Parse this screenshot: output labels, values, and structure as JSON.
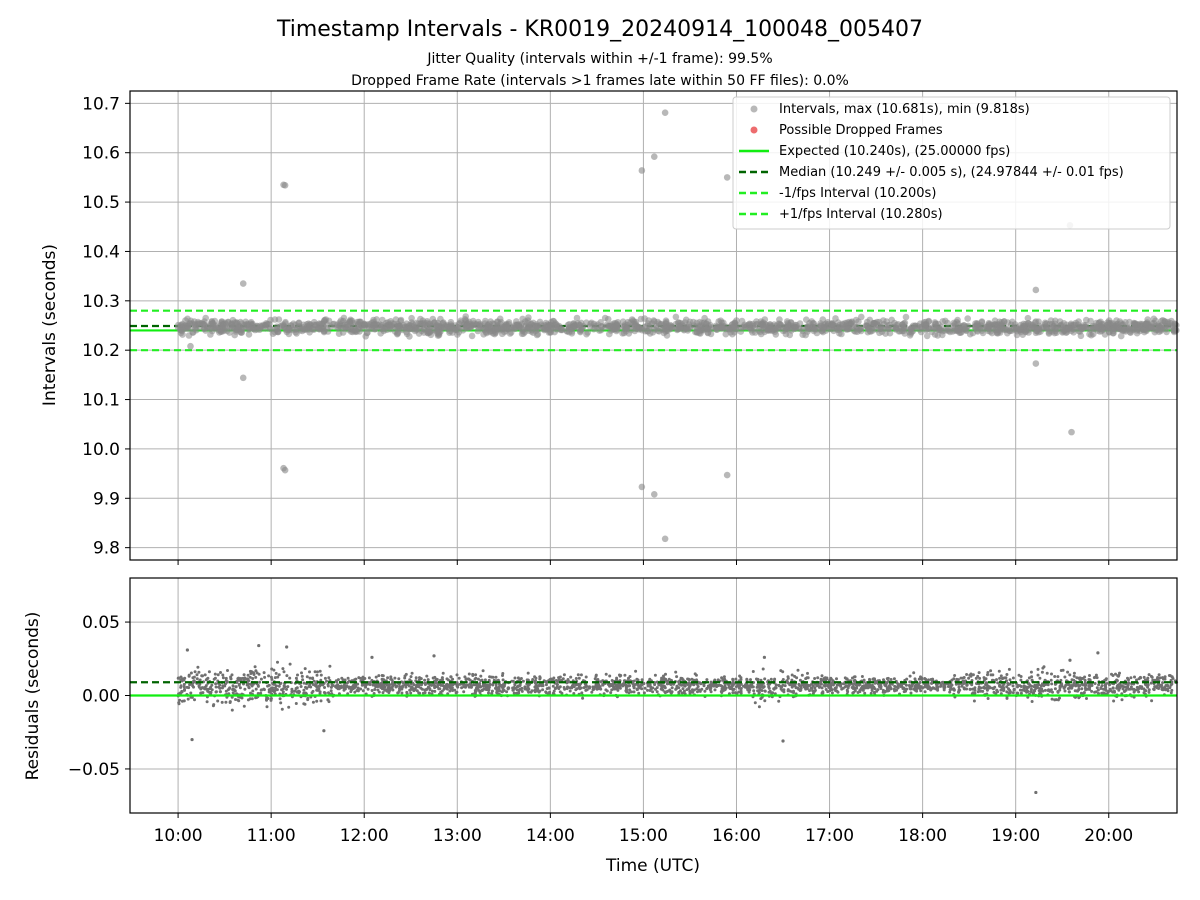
{
  "title": "Timestamp Intervals - KR0019_20240914_100048_005407",
  "subtitle_1": "Jitter Quality (intervals within +/-1 frame): 99.5%",
  "subtitle_2": "Dropped Frame Rate (intervals >1 frames late within 50 FF files): 0.0%",
  "colors": {
    "intervals": "#888888",
    "dropped": "#e8474a",
    "expected": "#11ee11",
    "median": "#006400",
    "interval_bounds": "#22ee22",
    "residuals": "#707070",
    "grid": "#b0b0b0"
  },
  "chart_data": [
    {
      "type": "scatter",
      "panel": "intervals",
      "ylabel": "Intervals (seconds)",
      "xlabel": "",
      "ylim": [
        9.775,
        10.725
      ],
      "xlim": [
        "09:29",
        "20:44"
      ],
      "yticks": [
        "9.8",
        "9.9",
        "10.0",
        "10.1",
        "10.2",
        "10.3",
        "10.4",
        "10.5",
        "10.6",
        "10.7"
      ],
      "ytick_values": [
        9.8,
        9.9,
        10.0,
        10.1,
        10.2,
        10.3,
        10.4,
        10.5,
        10.6,
        10.7
      ],
      "grid": true,
      "legend_position": "top-right",
      "legend": [
        "Intervals, max (10.681s), min (9.818s)",
        "Possible Dropped Frames",
        "Expected (10.240s), (25.00000 fps)",
        "Median (10.249 +/- 0.005 s), (24.97844 +/- 0.01 fps)",
        "-1/fps Interval (10.200s)",
        "+1/fps Interval (10.280s)"
      ],
      "reference_lines": {
        "expected": 10.24,
        "median": 10.249,
        "minus_1_fps": 10.2,
        "plus_1_fps": 10.28
      },
      "core_band": {
        "center": 10.247,
        "spread": 0.012,
        "time_start": "10:00",
        "time_end": "20:44"
      },
      "outliers": [
        {
          "x": "10:08",
          "y": 10.208
        },
        {
          "x": "10:42",
          "y": 10.335
        },
        {
          "x": "10:42",
          "y": 10.144
        },
        {
          "x": "11:08",
          "y": 10.535
        },
        {
          "x": "11:09",
          "y": 10.534
        },
        {
          "x": "11:08",
          "y": 9.961
        },
        {
          "x": "11:09",
          "y": 9.957
        },
        {
          "x": "14:59",
          "y": 10.564
        },
        {
          "x": "14:59",
          "y": 9.923
        },
        {
          "x": "15:07",
          "y": 10.592
        },
        {
          "x": "15:07",
          "y": 9.908
        },
        {
          "x": "15:14",
          "y": 10.681
        },
        {
          "x": "15:14",
          "y": 9.818
        },
        {
          "x": "15:54",
          "y": 10.55
        },
        {
          "x": "15:54",
          "y": 9.947
        },
        {
          "x": "19:13",
          "y": 10.322
        },
        {
          "x": "19:13",
          "y": 10.173
        },
        {
          "x": "19:35",
          "y": 10.453
        },
        {
          "x": "19:36",
          "y": 10.034
        }
      ]
    },
    {
      "type": "scatter",
      "panel": "residuals",
      "ylabel": "Residuals (seconds)",
      "xlabel": "Time (UTC)",
      "ylim": [
        -0.08,
        0.08
      ],
      "yticks": [
        "−0.05",
        "0.00",
        "0.05"
      ],
      "ytick_values": [
        -0.05,
        0.0,
        0.05
      ],
      "xticks": [
        "10:00",
        "11:00",
        "12:00",
        "13:00",
        "14:00",
        "15:00",
        "16:00",
        "17:00",
        "18:00",
        "19:00",
        "20:00"
      ],
      "grid": true,
      "reference_lines": {
        "zero": 0.0,
        "median_offset": 0.009
      },
      "noise_profile": [
        {
          "from": "10:00",
          "to": "11:40",
          "center": 0.006,
          "spread": 0.011
        },
        {
          "from": "11:40",
          "to": "16:10",
          "center": 0.007,
          "spread": 0.006
        },
        {
          "from": "16:10",
          "to": "16:40",
          "center": 0.006,
          "spread": 0.009
        },
        {
          "from": "16:40",
          "to": "18:20",
          "center": 0.007,
          "spread": 0.005
        },
        {
          "from": "18:20",
          "to": "20:44",
          "center": 0.007,
          "spread": 0.008
        }
      ],
      "outliers": [
        {
          "x": "10:09",
          "y": -0.03
        },
        {
          "x": "10:06",
          "y": 0.031
        },
        {
          "x": "10:52",
          "y": 0.034
        },
        {
          "x": "11:10",
          "y": 0.033
        },
        {
          "x": "11:34",
          "y": -0.024
        },
        {
          "x": "12:05",
          "y": 0.026
        },
        {
          "x": "12:45",
          "y": 0.027
        },
        {
          "x": "16:30",
          "y": -0.031
        },
        {
          "x": "16:18",
          "y": 0.026
        },
        {
          "x": "19:13",
          "y": -0.066
        },
        {
          "x": "19:35",
          "y": 0.024
        },
        {
          "x": "19:53",
          "y": 0.029
        }
      ]
    }
  ]
}
